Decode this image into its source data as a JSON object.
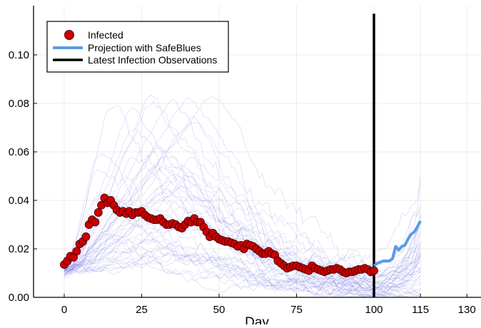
{
  "chart_data": {
    "type": "line",
    "title": "",
    "xlabel": "Day",
    "ylabel": "",
    "xlim": [
      -10,
      134
    ],
    "ylim": [
      0,
      0.12
    ],
    "grid": true,
    "legend_placement": "top-left",
    "x_ticks": [
      "0",
      "25",
      "50",
      "75",
      "100",
      "115",
      "130"
    ],
    "x_tick_values": [
      0,
      25,
      50,
      75,
      100,
      115,
      130
    ],
    "y_ticks": [
      "0.00",
      "0.02",
      "0.04",
      "0.06",
      "0.08",
      "0.10"
    ],
    "y_tick_values": [
      0,
      0.02,
      0.04,
      0.06,
      0.08,
      0.1
    ],
    "legend": [
      "Infected",
      "Projection with SafeBlues",
      "Latest Infection Observations"
    ],
    "colors": {
      "infected": "#cc0000",
      "projection": "#5b9be6",
      "observation_line": "#000000",
      "simulations": "#6a6ae0"
    },
    "series": [
      {
        "name": "Infected",
        "kind": "scatter",
        "x_start": 0,
        "values": [
          0.0135,
          0.015,
          0.017,
          0.0165,
          0.019,
          0.022,
          0.023,
          0.025,
          0.03,
          0.032,
          0.031,
          0.035,
          0.038,
          0.041,
          0.039,
          0.04,
          0.038,
          0.036,
          0.035,
          0.0355,
          0.0345,
          0.0355,
          0.034,
          0.035,
          0.035,
          0.0355,
          0.034,
          0.033,
          0.0325,
          0.032,
          0.032,
          0.0325,
          0.031,
          0.03,
          0.03,
          0.0305,
          0.03,
          0.029,
          0.0285,
          0.03,
          0.0315,
          0.031,
          0.0325,
          0.031,
          0.031,
          0.029,
          0.027,
          0.025,
          0.0265,
          0.025,
          0.024,
          0.0235,
          0.023,
          0.023,
          0.0225,
          0.022,
          0.021,
          0.0215,
          0.02,
          0.022,
          0.0215,
          0.021,
          0.02,
          0.019,
          0.018,
          0.018,
          0.019,
          0.018,
          0.0175,
          0.015,
          0.014,
          0.013,
          0.012,
          0.0125,
          0.013,
          0.013,
          0.0125,
          0.012,
          0.0115,
          0.011,
          0.013,
          0.012,
          0.0115,
          0.011,
          0.0105,
          0.011,
          0.0115,
          0.0115,
          0.012,
          0.0115,
          0.0105,
          0.01,
          0.0105,
          0.0105,
          0.011,
          0.0115,
          0.0115,
          0.012,
          0.0115,
          0.0105,
          0.011
        ]
      },
      {
        "name": "Projection with SafeBlues",
        "kind": "line",
        "x_start": 100,
        "values": [
          0.013,
          0.014,
          0.0145,
          0.015,
          0.015,
          0.015,
          0.016,
          0.021,
          0.0195,
          0.021,
          0.0215,
          0.024,
          0.026,
          0.027,
          0.029,
          0.0315
        ]
      },
      {
        "name": "Latest Infection Observations",
        "kind": "vline",
        "x": 100
      }
    ]
  }
}
